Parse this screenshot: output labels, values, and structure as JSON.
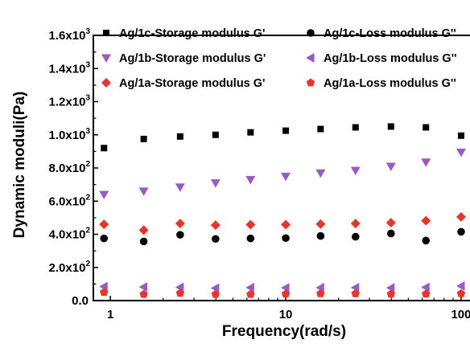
{
  "chart_data": {
    "type": "scatter",
    "x_scale": "log",
    "xlim": [
      0.8,
      110
    ],
    "ylim": [
      0,
      1600
    ],
    "xlabel": "Frequency(rad/s)",
    "ylabel": "Dynamic moduli(Pa)",
    "x_ticks": [
      {
        "value": 1,
        "label": "1"
      },
      {
        "value": 10,
        "label": "10"
      },
      {
        "value": 100,
        "label": "100"
      }
    ],
    "y_ticks": [
      {
        "value": 0,
        "mantissa": "0.0",
        "exp": ""
      },
      {
        "value": 200,
        "mantissa": "2.0x10",
        "exp": "2"
      },
      {
        "value": 400,
        "mantissa": "4.0x10",
        "exp": "2"
      },
      {
        "value": 600,
        "mantissa": "6.0x10",
        "exp": "2"
      },
      {
        "value": 800,
        "mantissa": "8.0x10",
        "exp": "2"
      },
      {
        "value": 1000,
        "mantissa": "1.0x10",
        "exp": "3"
      },
      {
        "value": 1200,
        "mantissa": "1.2x10",
        "exp": "3"
      },
      {
        "value": 1400,
        "mantissa": "1.4x10",
        "exp": "3"
      },
      {
        "value": 1600,
        "mantissa": "1.6x10",
        "exp": "3"
      }
    ],
    "x": [
      0.92,
      1.55,
      2.5,
      3.98,
      6.3,
      10,
      15.8,
      25,
      39.8,
      63,
      100
    ],
    "legend_position": "top",
    "series": [
      {
        "name": "Ag/1c-Storage modulus G'",
        "marker": "square",
        "color": "#000000",
        "values": [
          920,
          975,
          990,
          1000,
          1015,
          1025,
          1035,
          1045,
          1050,
          1045,
          995
        ]
      },
      {
        "name": "Ag/1c-Loss modulus G''",
        "marker": "circle",
        "color": "#000000",
        "values": [
          375,
          357,
          397,
          372,
          375,
          377,
          390,
          385,
          405,
          362,
          415
        ]
      },
      {
        "name": "Ag/1b-Storage modulus G'",
        "marker": "triangle-down",
        "color": "#9b59c5",
        "values": [
          640,
          660,
          685,
          710,
          730,
          750,
          770,
          785,
          810,
          835,
          895
        ]
      },
      {
        "name": "Ag/1b-Loss modulus G''",
        "marker": "triangle-left",
        "color": "#9b59c5",
        "values": [
          85,
          82,
          80,
          75,
          78,
          77,
          78,
          78,
          77,
          80,
          88
        ]
      },
      {
        "name": "Ag/1a-Storage modulus G'",
        "marker": "diamond",
        "color": "#e8352a",
        "values": [
          460,
          425,
          465,
          455,
          458,
          458,
          462,
          465,
          470,
          482,
          505
        ]
      },
      {
        "name": "Ag/1a-Loss modulus G''",
        "marker": "pentagon",
        "color": "#e8352a",
        "values": [
          50,
          38,
          45,
          38,
          38,
          40,
          42,
          42,
          40,
          40,
          42
        ]
      }
    ]
  }
}
